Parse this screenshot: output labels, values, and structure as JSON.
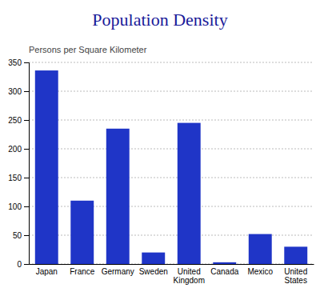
{
  "chart_data": {
    "type": "bar",
    "title": "Population Density",
    "subtitle": "Persons per Square Kilometer",
    "categories": [
      "Japan",
      "France",
      "Germany",
      "Sweden",
      "United\nKingdom",
      "Canada",
      "Mexico",
      "United\nStates"
    ],
    "values": [
      336,
      110,
      235,
      20,
      245,
      3,
      52,
      30
    ],
    "color": "#1f35c7",
    "ylim": [
      0,
      350
    ],
    "yticks": [
      0,
      50,
      100,
      150,
      200,
      250,
      300,
      350
    ],
    "grid": true
  }
}
